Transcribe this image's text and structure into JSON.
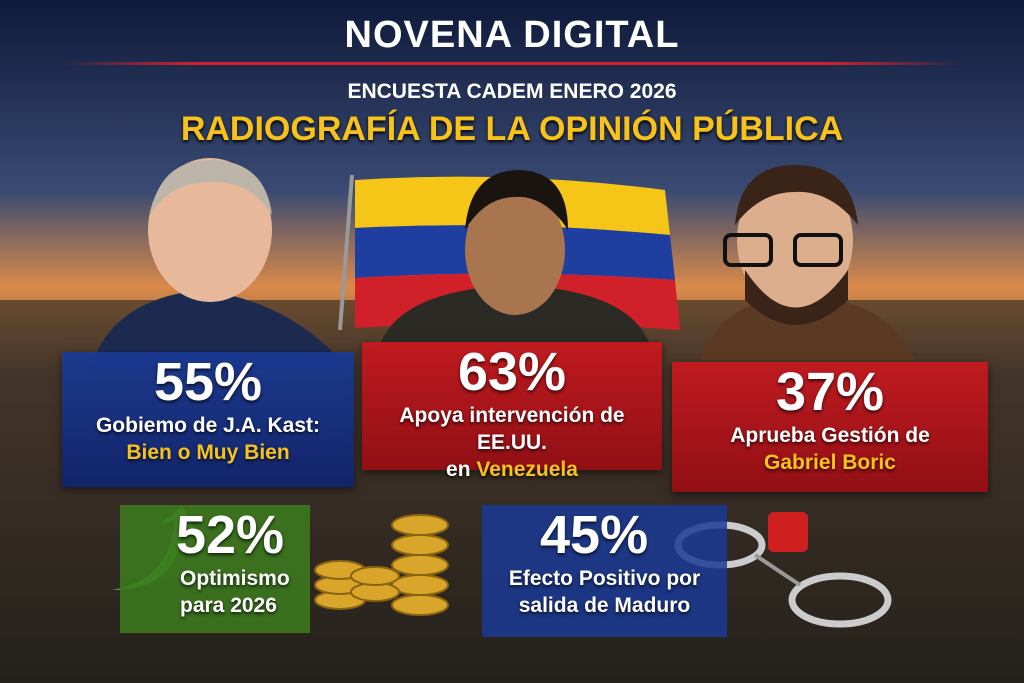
{
  "header": {
    "brand": "NOVENA DIGITAL",
    "kicker": "ENCUESTA CADEM ENERO 2026",
    "title": "RADIOGRAFÍA DE LA OPINIÓN PÚBLICA"
  },
  "stats": [
    {
      "value": "55%",
      "line1": "Gobiemo de J.A. Kast:",
      "highlight": "Bien o Muy Bien"
    },
    {
      "value": "63%",
      "line1": "Apoya intervención de EE.UU.",
      "prefix": "en",
      "highlight": "Venezuela"
    },
    {
      "value": "37%",
      "line1": "Aprueba Gestión de",
      "highlight": "Gabriel Boric"
    },
    {
      "value": "52%",
      "line1": "Optimismo",
      "line2": "para 2026"
    },
    {
      "value": "45%",
      "line1": "Efecto Positivo por",
      "line2": "salida de Maduro"
    }
  ]
}
